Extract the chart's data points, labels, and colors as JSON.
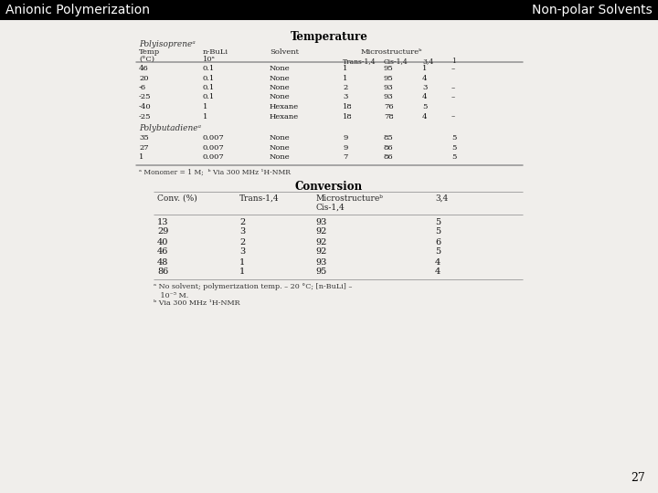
{
  "title_left": "Anionic Polymerization",
  "title_right": "Non-polar Solvents",
  "page_number": "27",
  "header_bg": "#000000",
  "header_text_color": "#ffffff",
  "body_bg": "#f0eeeb",
  "section1_title": "Temperature",
  "section1_subtitle": "Polyisopreneᵃ",
  "table1_poly2_subtitle": "Polybutadieneᵃ",
  "table1_data": [
    [
      "46",
      "0.1",
      "None",
      "1",
      "95",
      "1",
      "–"
    ],
    [
      "20",
      "0.1",
      "None",
      "1",
      "95",
      "4",
      ""
    ],
    [
      "-6",
      "0.1",
      "None",
      "2",
      "93",
      "3",
      "–"
    ],
    [
      "-25",
      "0.1",
      "None",
      "3",
      "93",
      "4",
      "–"
    ],
    [
      "-40",
      "1",
      "Hexane",
      "18",
      "76",
      "5",
      ""
    ],
    [
      "-25",
      "1",
      "Hexane",
      "18",
      "78",
      "4",
      "–"
    ]
  ],
  "table1_poly2_data": [
    [
      "35",
      "0.007",
      "None",
      "9",
      "85",
      "",
      "5"
    ],
    [
      "27",
      "0.007",
      "None",
      "9",
      "86",
      "",
      "5"
    ],
    [
      "1",
      "0.007",
      "None",
      "7",
      "86",
      "",
      "5"
    ]
  ],
  "table1_footnote": "ᵃ Monomer = 1 M;  ᵇ Via 300 MHz ¹H-NMR",
  "section2_title": "Conversion",
  "table2_data": [
    [
      "13",
      "2",
      "93",
      "5"
    ],
    [
      "29",
      "3",
      "92",
      "5"
    ],
    [
      "40",
      "2",
      "92",
      "6"
    ],
    [
      "46",
      "3",
      "92",
      "5"
    ],
    [
      "48",
      "1",
      "93",
      "4"
    ],
    [
      "86",
      "1",
      "95",
      "4"
    ]
  ],
  "table2_footnote_a": "ᵃ No solvent; polymerization temp. – 20 °C; [n-BuLi] –",
  "table2_footnote_a2": "   10⁻⁵ M.",
  "table2_footnote_b": "ᵇ Via 300 MHz ¹H-NMR"
}
